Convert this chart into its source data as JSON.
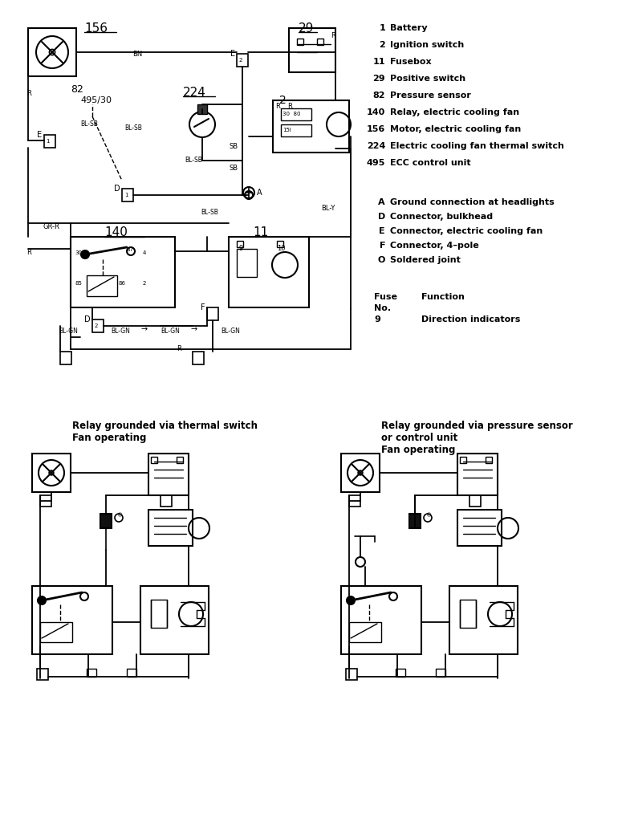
{
  "bg_color": "#ffffff",
  "legend_items": [
    [
      "1",
      "Battery"
    ],
    [
      "2",
      "Ignition switch"
    ],
    [
      "11",
      "Fusebox"
    ],
    [
      "29",
      "Positive switch"
    ],
    [
      "82",
      "Pressure sensor"
    ],
    [
      "140",
      "Relay, electric cooling fan"
    ],
    [
      "156",
      "Motor, electric cooling fan"
    ],
    [
      "224",
      "Electric cooling fan thermal switch"
    ],
    [
      "495",
      "ECC control unit"
    ]
  ],
  "connector_items": [
    [
      "A",
      "Ground connection at headlights"
    ],
    [
      "D",
      "Connector, bulkhead"
    ],
    [
      "E",
      "Connector, electric cooling fan"
    ],
    [
      "F",
      "Connector, 4–pole"
    ],
    [
      "O",
      "Soldered joint"
    ]
  ],
  "fuse_header": [
    "Fuse",
    "Function"
  ],
  "fuse_no_label": "No.",
  "fuse_items": [
    [
      "9",
      "Direction indicators"
    ]
  ],
  "subtitle1": "Relay grounded via thermal switch\nFan operating",
  "subtitle2": "Relay grounded via pressure sensor\nor control unit\nFan operating"
}
